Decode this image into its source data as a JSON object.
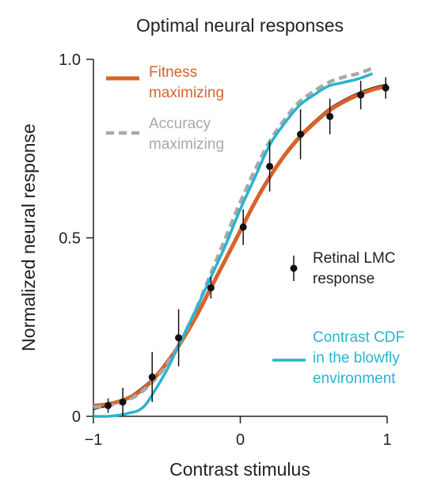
{
  "chart_data": {
    "type": "line",
    "title": "Optimal neural responses",
    "xlabel": "Contrast stimulus",
    "ylabel": "Normalized neural response",
    "xlim": [
      -1,
      1
    ],
    "ylim": [
      0,
      1
    ],
    "x_ticks": [
      -1,
      0,
      1
    ],
    "x_tick_labels": [
      "−1",
      "0",
      "1"
    ],
    "y_ticks": [
      0,
      0.5,
      1
    ],
    "y_tick_labels": [
      "0",
      "0.5",
      "1.0"
    ],
    "grid": false,
    "legend": [
      {
        "key": "fitness",
        "lines": [
          "Fitness",
          "maximizing"
        ],
        "color": "#d8632a",
        "style": "solid"
      },
      {
        "key": "accuracy",
        "lines": [
          "Accuracy",
          "maximizing"
        ],
        "color": "#a8a8a8",
        "style": "dashed"
      },
      {
        "key": "lmc",
        "lines": [
          "Retinal LMC",
          "response"
        ],
        "color": "#111111",
        "style": "points"
      },
      {
        "key": "cdf",
        "lines": [
          "Contrast CDF",
          "in the blowfly",
          "environment"
        ],
        "color": "#29b3d1",
        "style": "solid"
      }
    ],
    "series": [
      {
        "key": "fitness",
        "name": "Fitness maximizing",
        "color": "#d8632a",
        "x": [
          -1,
          -0.9,
          -0.8,
          -0.7,
          -0.6,
          -0.5,
          -0.4,
          -0.3,
          -0.2,
          -0.1,
          0,
          0.1,
          0.2,
          0.3,
          0.4,
          0.5,
          0.6,
          0.7,
          0.8,
          0.9,
          1
        ],
        "y": [
          0.03,
          0.034,
          0.045,
          0.065,
          0.1,
          0.15,
          0.21,
          0.28,
          0.36,
          0.44,
          0.52,
          0.6,
          0.67,
          0.73,
          0.78,
          0.82,
          0.855,
          0.88,
          0.9,
          0.915,
          0.925
        ]
      },
      {
        "key": "lmc_fit",
        "color": "#111111",
        "x": [
          -1,
          -0.9,
          -0.8,
          -0.7,
          -0.6,
          -0.5,
          -0.4,
          -0.3,
          -0.2,
          -0.1,
          0,
          0.1,
          0.2,
          0.3,
          0.4,
          0.5,
          0.6,
          0.7,
          0.8,
          0.9,
          1
        ],
        "y": [
          0.02,
          0.03,
          0.045,
          0.07,
          0.105,
          0.155,
          0.215,
          0.285,
          0.365,
          0.445,
          0.525,
          0.605,
          0.675,
          0.735,
          0.785,
          0.825,
          0.86,
          0.885,
          0.905,
          0.92,
          0.93
        ]
      },
      {
        "key": "accuracy",
        "name": "Accuracy maximizing",
        "color": "#a8a8a8",
        "x": [
          -1,
          -0.9,
          -0.8,
          -0.7,
          -0.6,
          -0.5,
          -0.4,
          -0.3,
          -0.2,
          -0.1,
          0,
          0.1,
          0.2,
          0.3,
          0.4,
          0.5,
          0.6,
          0.7,
          0.8,
          0.9
        ],
        "y": [
          0.025,
          0.03,
          0.04,
          0.06,
          0.095,
          0.145,
          0.215,
          0.3,
          0.4,
          0.5,
          0.6,
          0.69,
          0.77,
          0.83,
          0.88,
          0.91,
          0.935,
          0.95,
          0.96,
          0.975
        ]
      },
      {
        "key": "cdf",
        "name": "Contrast CDF in the blowfly environment",
        "color": "#29b3d1",
        "x": [
          -1,
          -0.9,
          -0.8,
          -0.75,
          -0.7,
          -0.65,
          -0.6,
          -0.5,
          -0.4,
          -0.3,
          -0.2,
          -0.1,
          0,
          0.1,
          0.2,
          0.3,
          0.4,
          0.5,
          0.6,
          0.7,
          0.8,
          0.9
        ],
        "y": [
          0.0,
          0.0,
          0.005,
          0.01,
          0.015,
          0.03,
          0.06,
          0.13,
          0.215,
          0.3,
          0.39,
          0.48,
          0.58,
          0.67,
          0.76,
          0.82,
          0.87,
          0.9,
          0.925,
          0.935,
          0.945,
          0.96
        ]
      },
      {
        "key": "lmc",
        "name": "Retinal LMC response",
        "color": "#111111",
        "type": "points",
        "x": [
          -0.9,
          -0.8,
          -0.6,
          -0.42,
          -0.2,
          0.02,
          0.2,
          0.41,
          0.61,
          0.82,
          0.99
        ],
        "y": [
          0.03,
          0.04,
          0.11,
          0.22,
          0.36,
          0.53,
          0.7,
          0.79,
          0.84,
          0.9,
          0.92
        ],
        "err": [
          0.02,
          0.04,
          0.07,
          0.08,
          0.03,
          0.05,
          0.07,
          0.07,
          0.05,
          0.04,
          0.03
        ]
      }
    ]
  }
}
